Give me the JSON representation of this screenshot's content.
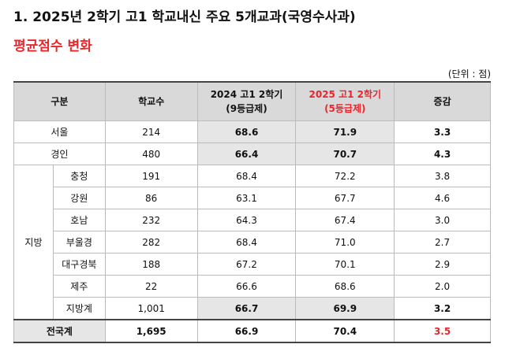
{
  "title": "1. 2025년 2학기 고1 학교내신 주요 5개교과(국영수사과)",
  "subtitle": "평균점수 변화",
  "unit": "(단위 : 점)",
  "table": {
    "header": [
      [
        "구분"
      ],
      [
        "학교수"
      ],
      [
        "2024 고1 2학기",
        "(9등급제)"
      ],
      [
        "2025 고1 2학기",
        "(5등급제)"
      ],
      [
        "증감"
      ]
    ],
    "rows": [
      [
        "서울",
        "214",
        "68.6",
        "71.9",
        "3.3"
      ],
      [
        "경인",
        "480",
        "66.4",
        "70.7",
        "4.3"
      ]
    ],
    "region": {
      "label": "지방",
      "rows": [
        [
          "충청",
          "191",
          "68.4",
          "72.2",
          "3.8"
        ],
        [
          "강원",
          "86",
          "63.1",
          "67.7",
          "4.6"
        ],
        [
          "호남",
          "232",
          "64.3",
          "67.4",
          "3.0"
        ],
        [
          "부울경",
          "282",
          "68.4",
          "71.0",
          "2.7"
        ],
        [
          "대구경북",
          "188",
          "67.2",
          "70.1",
          "2.9"
        ],
        [
          "제주",
          "22",
          "66.6",
          "68.6",
          "2.0"
        ],
        [
          "지방계",
          "1,001",
          "66.7",
          "69.9",
          "3.2"
        ]
      ]
    },
    "total": [
      "전국계",
      "1,695",
      "66.9",
      "70.4",
      "3.5"
    ]
  }
}
